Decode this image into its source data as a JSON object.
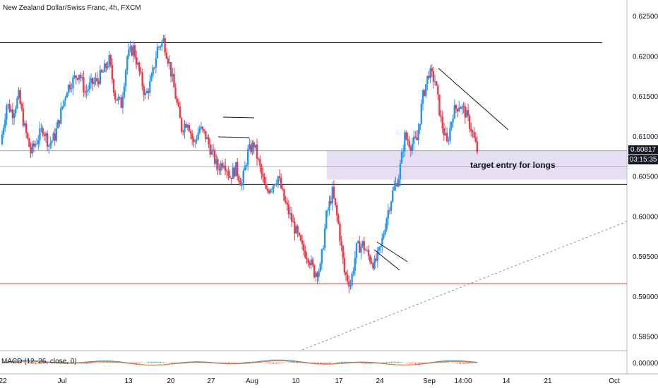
{
  "title": "New Zealand Dollar/Swiss Franc, 4h, FXCM",
  "macd_label": "MACD (12, 26, close, 0)",
  "annotation": "target entry for longs",
  "last_price": "0.60817",
  "countdown": "03:15:35",
  "colors": {
    "up": "#26a69a",
    "down": "#ef5350",
    "candle_up": "#2196f3",
    "candle_down": "#f23645",
    "zone": "#d1c4e9",
    "support_line": "#f23645",
    "macd_line": "#2196f3",
    "signal_line": "#ff6d00"
  },
  "chart_data": {
    "type": "candlestick",
    "y_ticks": [
      "0.62500",
      "0.62000",
      "0.61500",
      "0.61000",
      "0.60500",
      "0.60000",
      "0.59500",
      "0.59000",
      "0.58500"
    ],
    "ylim": [
      0.5815,
      0.627
    ],
    "x_ticks": [
      "22",
      "Jul",
      "13",
      "20",
      "27",
      "Aug",
      "10",
      "17",
      "24",
      "Sep",
      "14:00",
      "14",
      "21",
      "Oct"
    ],
    "macd_ticks": [
      "0.00000"
    ],
    "horizontal_lines": [
      {
        "name": "upper-resistance",
        "value": 0.6217
      },
      {
        "name": "zone-top",
        "value": 0.6082
      },
      {
        "name": "zone-mid",
        "value": 0.6062
      },
      {
        "name": "lower-level",
        "value": 0.604
      },
      {
        "name": "support",
        "value": 0.5916
      }
    ],
    "zone": {
      "low": 0.6046,
      "high": 0.6082
    },
    "close_path": [
      0.609,
      0.614,
      0.613,
      0.615,
      0.611,
      0.608,
      0.6095,
      0.611,
      0.609,
      0.61,
      0.613,
      0.616,
      0.617,
      0.618,
      0.6155,
      0.6165,
      0.617,
      0.618,
      0.6195,
      0.615,
      0.614,
      0.62,
      0.621,
      0.618,
      0.615,
      0.617,
      0.621,
      0.622,
      0.619,
      0.615,
      0.611,
      0.612,
      0.609,
      0.611,
      0.61,
      0.608,
      0.606,
      0.607,
      0.605,
      0.606,
      0.604,
      0.608,
      0.609,
      0.606,
      0.603,
      0.604,
      0.605,
      0.602,
      0.6,
      0.598,
      0.596,
      0.595,
      0.593,
      0.5935,
      0.6,
      0.603,
      0.599,
      0.593,
      0.5915,
      0.596,
      0.5965,
      0.595,
      0.594,
      0.596,
      0.6,
      0.603,
      0.605,
      0.61,
      0.609,
      0.6095,
      0.615,
      0.618,
      0.617,
      0.612,
      0.609,
      0.613,
      0.614,
      0.613,
      0.611,
      0.6082
    ],
    "drawings": [
      {
        "name": "falling-trendline",
        "points": [
          [
            0.6185,
            0
          ],
          [
            0.6108,
            1
          ]
        ]
      },
      {
        "name": "dashed-rising-trendline",
        "style": "dashed"
      }
    ]
  }
}
